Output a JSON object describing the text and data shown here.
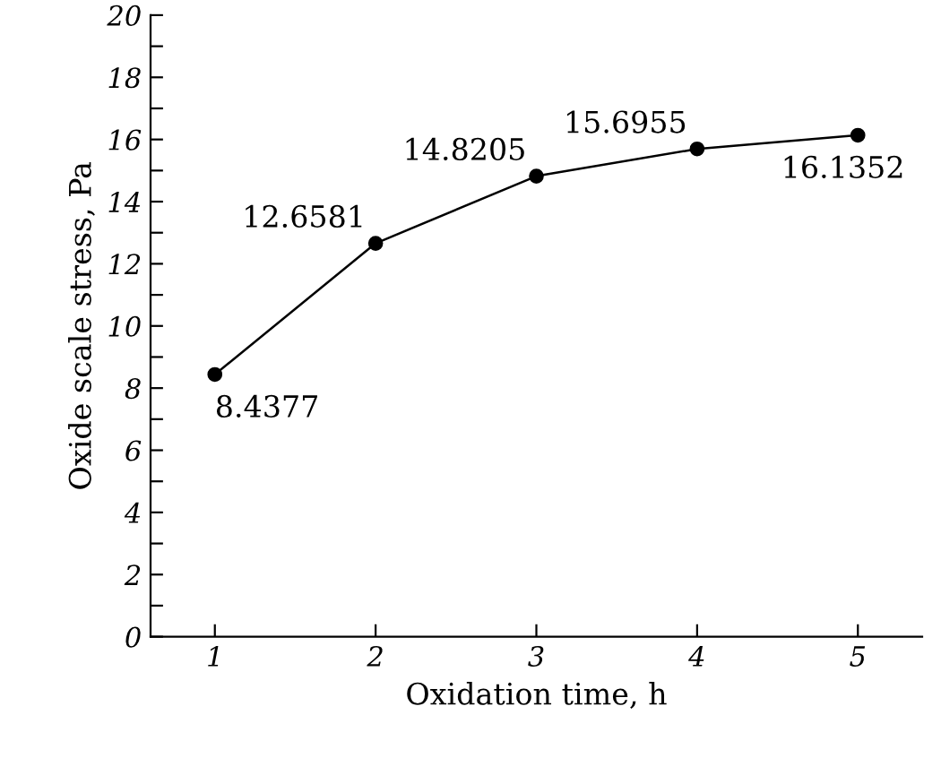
{
  "chart_data": {
    "type": "line",
    "xlabel": "Oxidation time, h",
    "ylabel": "Oxide scale stress, Pa",
    "x": [
      1,
      2,
      3,
      4,
      5
    ],
    "series": [
      {
        "color": "#000000",
        "values": [
          8.4377,
          12.6581,
          14.8205,
          15.6955,
          16.1352
        ]
      }
    ],
    "data_labels": true,
    "marker": "circle",
    "line_style": "solid",
    "grid": false,
    "legend": false,
    "xlim": [
      0.6,
      5.4
    ],
    "xticks": [
      1,
      2,
      3,
      4,
      5
    ],
    "ylim": [
      0,
      20
    ],
    "yticks": [
      0,
      {
        "value": 1,
        "label": null
      },
      2,
      {
        "value": 3,
        "label": null
      },
      4,
      {
        "value": 5,
        "label": null
      },
      6,
      {
        "value": 7,
        "label": null
      },
      8,
      {
        "value": 9,
        "label": null
      },
      10,
      {
        "value": 11,
        "label": null
      },
      12,
      {
        "value": 13,
        "label": null
      },
      14,
      {
        "value": 15,
        "label": null
      },
      16,
      {
        "value": 17,
        "label": null
      },
      18,
      {
        "value": 19,
        "label": null
      },
      20
    ]
  }
}
